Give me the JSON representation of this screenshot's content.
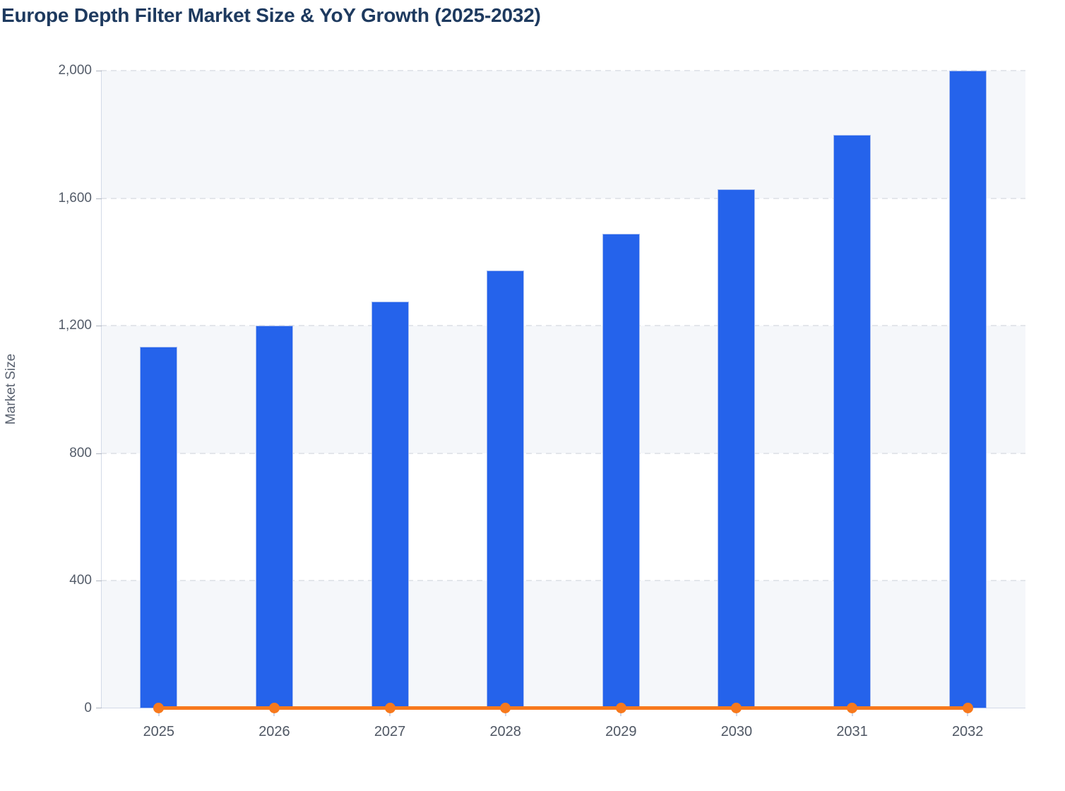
{
  "title": "Europe Depth Filter Market Size & YoY Growth (2025-2032)",
  "y_axis": {
    "label": "Market Size",
    "tick_labels": [
      "0",
      "400",
      "800",
      "1,200",
      "1,600",
      "2,000"
    ]
  },
  "x_axis": {
    "tick_labels": [
      "2025",
      "2026",
      "2027",
      "2028",
      "2029",
      "2030",
      "2031",
      "2032"
    ]
  },
  "chart_data": {
    "type": "bar",
    "title": "Europe Depth Filter Market Size & YoY Growth (2025-2032)",
    "categories": [
      "2025",
      "2026",
      "2027",
      "2028",
      "2029",
      "2030",
      "2031",
      "2032"
    ],
    "series": [
      {
        "name": "Market Size",
        "type": "bar",
        "color": "#2563eb",
        "values": [
          1134,
          1200,
          1276,
          1373,
          1488,
          1628,
          1798,
          2000
        ]
      },
      {
        "name": "YoY Growth",
        "type": "line",
        "color": "#f7791d",
        "values": [
          0,
          0,
          0,
          0,
          0,
          0,
          0,
          0
        ],
        "note": "line renders flat on the zero baseline of the Market Size axis, with a round marker at every year"
      }
    ],
    "xlabel": "",
    "ylabel": "Market Size",
    "ylim": [
      0,
      2000
    ],
    "yticks": [
      0,
      400,
      800,
      1200,
      1600,
      2000
    ],
    "ytick_labels": [
      "0",
      "400",
      "800",
      "1,200",
      "1,600",
      "2,000"
    ],
    "grid": "horizontal dashed gridlines at each y tick",
    "plot_background": "alternating horizontal bands (light band between 0-400, 800-1200, 1600-2000)",
    "legend": "none"
  },
  "colors": {
    "title": "#1e3a5f",
    "bar": "#2563eb",
    "bar_border": "#a8bdf0",
    "line": "#f7791d",
    "band_light": "#f5f7fa",
    "gridline": "#e3e6eb",
    "axis_line": "#d3dae8",
    "y_tick_mark": "#aeb4bf",
    "x_tick_mark": "#ccd6ea",
    "y_tick_label": "#545c69",
    "x_tick_label": "#4f5764",
    "y_axis_title": "#5a6270"
  }
}
